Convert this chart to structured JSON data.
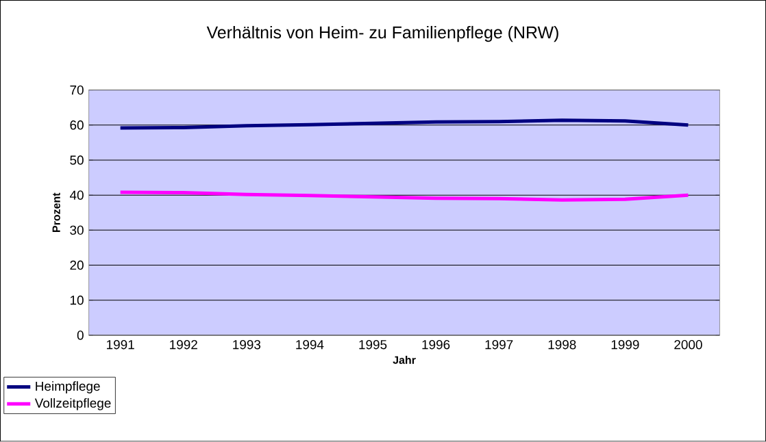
{
  "chart_data": {
    "type": "line",
    "title": "Verhältnis von Heim- zu Familienpflege (NRW)",
    "xlabel": "Jahr",
    "ylabel": "Prozent",
    "categories": [
      "1991",
      "1992",
      "1993",
      "1994",
      "1995",
      "1996",
      "1997",
      "1998",
      "1999",
      "2000"
    ],
    "series": [
      {
        "name": "Heimpflege",
        "color": "#000080",
        "values": [
          59.2,
          59.3,
          59.8,
          60.1,
          60.5,
          60.9,
          61.0,
          61.4,
          61.2,
          60.0
        ]
      },
      {
        "name": "Vollzeitpflege",
        "color": "#ff00ff",
        "values": [
          40.8,
          40.7,
          40.2,
          39.9,
          39.5,
          39.1,
          39.0,
          38.6,
          38.8,
          40.0
        ]
      }
    ],
    "ylim": [
      0,
      70
    ],
    "yticks": [
      0,
      10,
      20,
      30,
      40,
      50,
      60,
      70
    ],
    "grid": "y",
    "legend": "bottom left",
    "marker": "none",
    "line_style": "solid"
  }
}
